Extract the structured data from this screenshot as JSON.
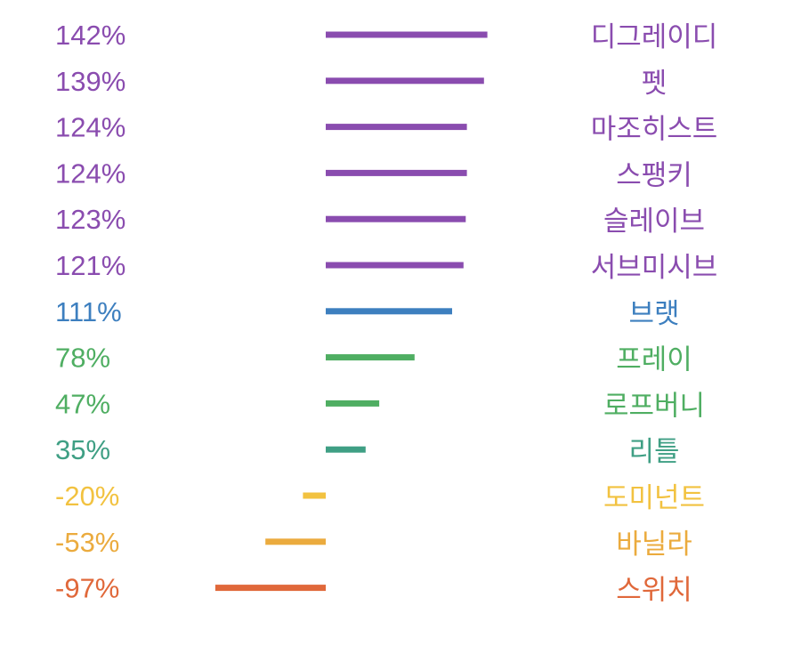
{
  "chart_data": {
    "type": "bar",
    "orientation": "horizontal",
    "categories": [
      "디그레이디",
      "펫",
      "마조히스트",
      "스팽키",
      "슬레이브",
      "서브미시브",
      "브랫",
      "프레이",
      "로프버니",
      "리틀",
      "도미넌트",
      "바닐라",
      "스위치"
    ],
    "value_labels": [
      "142%",
      "139%",
      "124%",
      "124%",
      "123%",
      "121%",
      "111%",
      "78%",
      "47%",
      "35%",
      "-20%",
      "-53%",
      "-97%"
    ],
    "values": [
      142,
      139,
      124,
      124,
      123,
      121,
      111,
      78,
      47,
      35,
      -20,
      -53,
      -97
    ],
    "colors": [
      "#8a4caf",
      "#8a4caf",
      "#8a4caf",
      "#8a4caf",
      "#8a4caf",
      "#8a4caf",
      "#3d7fbf",
      "#4fae62",
      "#4fae62",
      "#3f9f84",
      "#f2c240",
      "#ebab3e",
      "#e0683a"
    ],
    "grid": false,
    "legend": "none"
  }
}
